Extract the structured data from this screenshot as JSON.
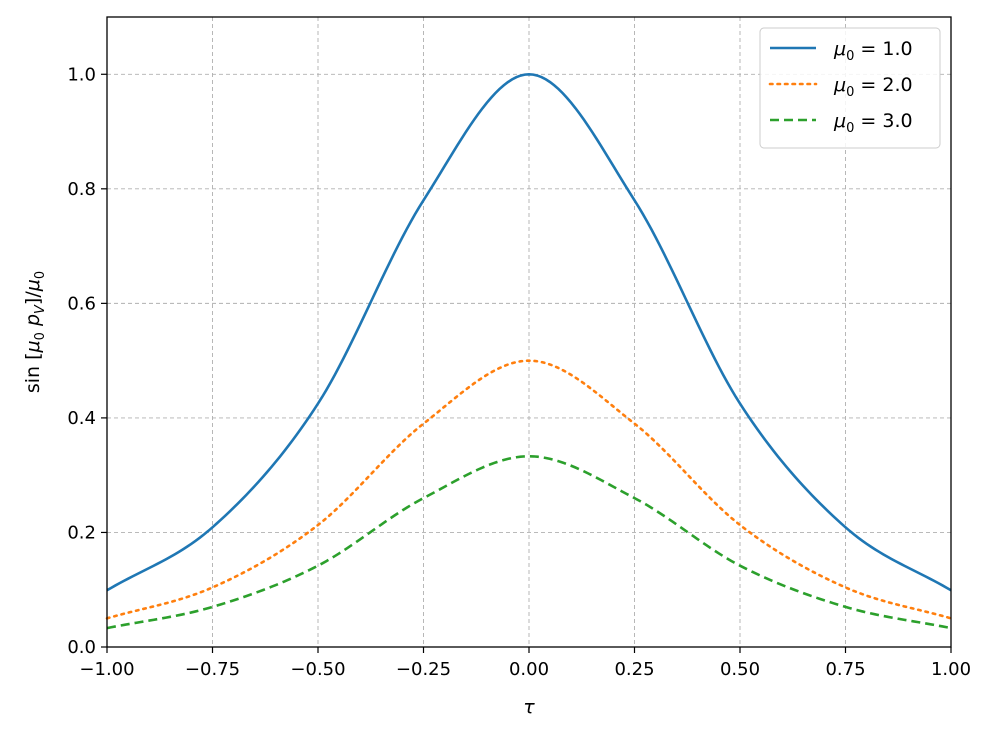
{
  "chart_data": {
    "type": "line",
    "title": "",
    "xlabel": "τ",
    "ylabel": "sin [μ0 pV]/μ0",
    "xlim": [
      -1.0,
      1.0
    ],
    "ylim": [
      0.0,
      1.1
    ],
    "x_ticks": [
      -1.0,
      -0.75,
      -0.5,
      -0.25,
      0.0,
      0.25,
      0.5,
      0.75,
      1.0
    ],
    "x_tick_labels": [
      "−1.00",
      "−0.75",
      "−0.50",
      "−0.25",
      "0.00",
      "0.25",
      "0.50",
      "0.75",
      "1.00"
    ],
    "y_ticks": [
      0.0,
      0.2,
      0.4,
      0.6,
      0.8,
      1.0
    ],
    "y_tick_labels": [
      "0.0",
      "0.2",
      "0.4",
      "0.6",
      "0.8",
      "1.0"
    ],
    "grid": true,
    "legend_position": "top-right",
    "x": [
      -1.0,
      -0.75,
      -0.5,
      -0.25,
      0.0,
      0.25,
      0.5,
      0.75,
      1.0
    ],
    "series": [
      {
        "name": "μ0 = 1.0",
        "mu0": "1.0",
        "color": "#1f77b4",
        "style": "solid",
        "values": [
          0.099,
          0.209,
          0.425,
          0.78,
          1.0,
          0.78,
          0.425,
          0.209,
          0.099
        ]
      },
      {
        "name": "μ0 = 2.0",
        "mu0": "2.0",
        "color": "#ff7f0e",
        "style": "dotted",
        "values": [
          0.05,
          0.104,
          0.213,
          0.39,
          0.5,
          0.39,
          0.213,
          0.104,
          0.05
        ]
      },
      {
        "name": "μ0 = 3.0",
        "mu0": "3.0",
        "color": "#2ca02c",
        "style": "dashed",
        "values": [
          0.033,
          0.07,
          0.142,
          0.26,
          0.333,
          0.26,
          0.142,
          0.07,
          0.033
        ]
      }
    ]
  }
}
